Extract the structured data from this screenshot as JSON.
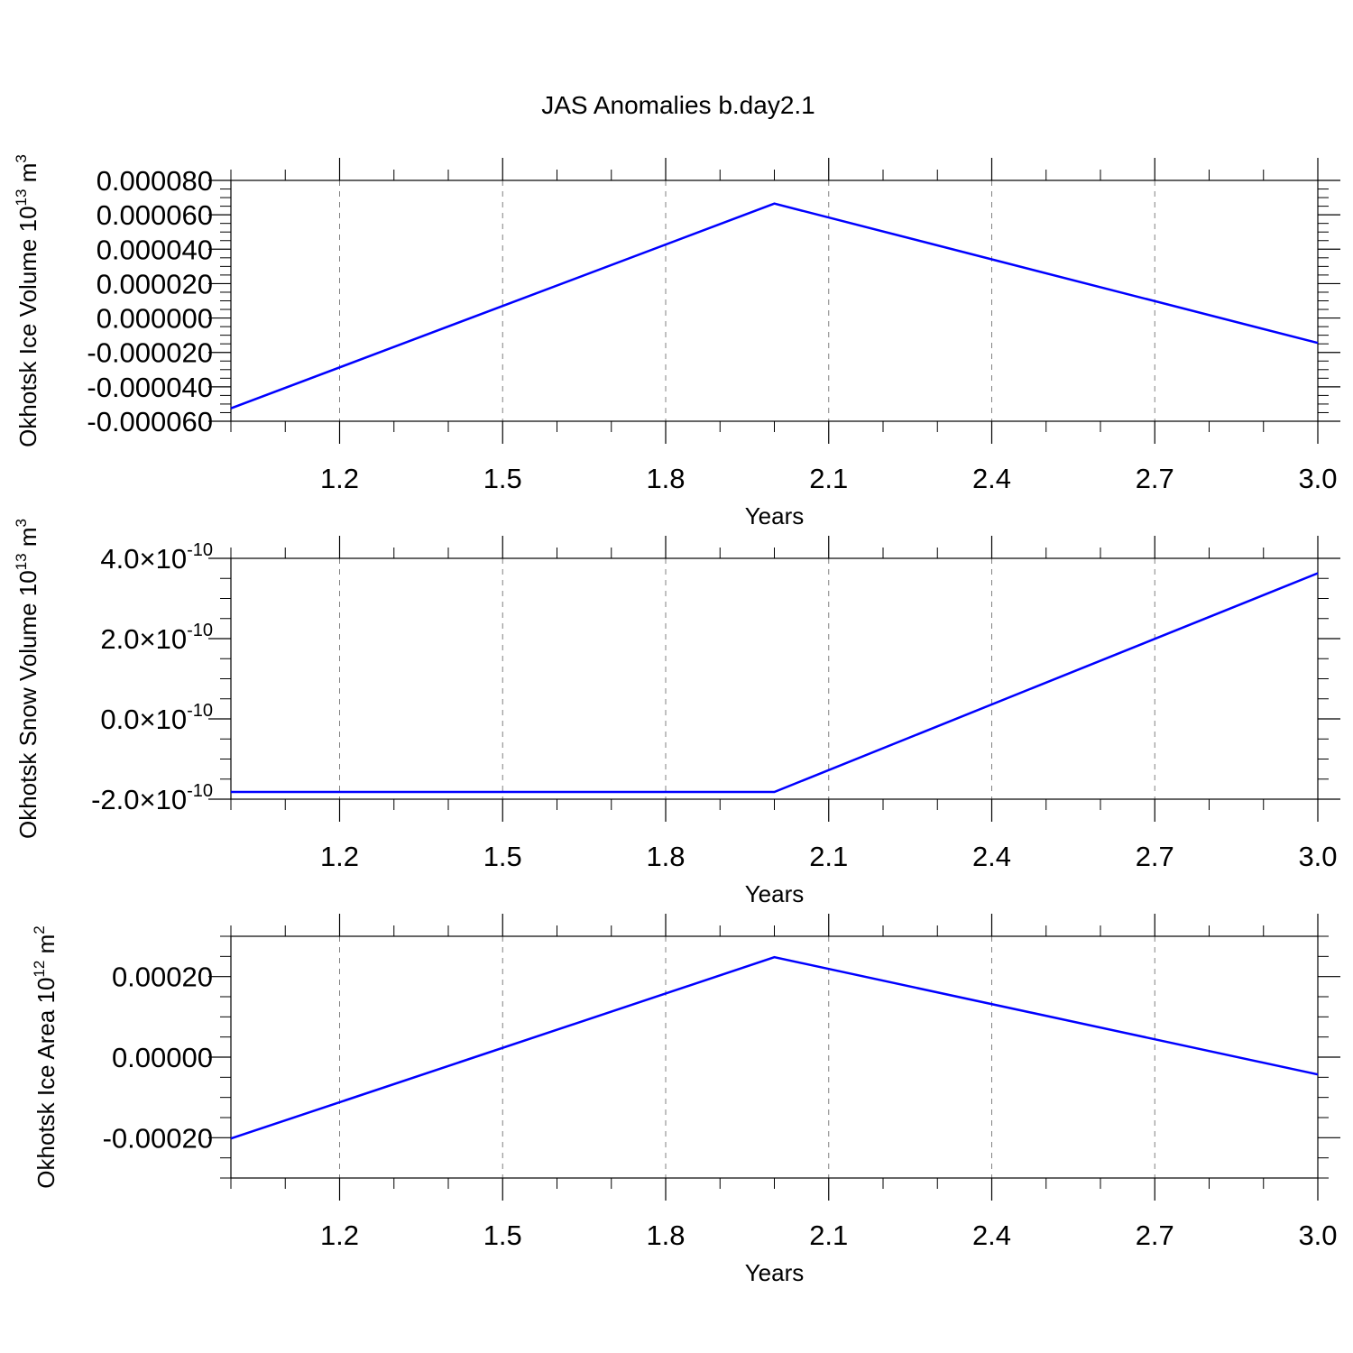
{
  "title": "JAS Anomalies b.day2.1",
  "colors": {
    "line": "#0000ff",
    "axis": "#000000",
    "grid": "#808080"
  },
  "chart_data": [
    {
      "type": "line",
      "xlabel": "Years",
      "ylabel": "Okhotsk Ice Volume 10",
      "ylabel_exp": "13",
      "ylabel_unit": " m",
      "ylabel_unit_exp": "3",
      "xlim": [
        1,
        3
      ],
      "ylim": [
        -6e-05,
        8e-05
      ],
      "xticks": [
        1.2,
        1.5,
        1.8,
        2.1,
        2.4,
        2.7,
        3.0
      ],
      "xtick_labels": [
        "1.2",
        "1.5",
        "1.8",
        "2.1",
        "2.4",
        "2.7",
        "3.0"
      ],
      "yticks": [
        8e-05,
        6e-05,
        4e-05,
        2e-05,
        0.0,
        -2e-05,
        -4e-05,
        -6e-05
      ],
      "ytick_labels": [
        "0.000080",
        "0.000060",
        "0.000040",
        "0.000020",
        "0.000000",
        "-0.000020",
        "-0.000040",
        "-0.000060"
      ],
      "grid": "vertical dashed",
      "series": [
        {
          "x": [
            1,
            2,
            3
          ],
          "values": [
            -5.25e-05,
            6.65e-05,
            -1.45e-05
          ]
        }
      ]
    },
    {
      "type": "line",
      "xlabel": "Years",
      "ylabel": "Okhotsk Snow Volume 10",
      "ylabel_exp": "13",
      "ylabel_unit": " m",
      "ylabel_unit_exp": "3",
      "xlim": [
        1,
        3
      ],
      "ylim": [
        -2e-10,
        4e-10
      ],
      "xticks": [
        1.2,
        1.5,
        1.8,
        2.1,
        2.4,
        2.7,
        3.0
      ],
      "xtick_labels": [
        "1.2",
        "1.5",
        "1.8",
        "2.1",
        "2.4",
        "2.7",
        "3.0"
      ],
      "yticks": [
        4e-10,
        2e-10,
        0,
        -2e-10
      ],
      "ytick_labels": [
        {
          "mantissa": "4.0",
          "times": "×10",
          "exp": "-10"
        },
        {
          "mantissa": "2.0",
          "times": "×10",
          "exp": "-10"
        },
        {
          "mantissa": "0.0",
          "times": "×10",
          "exp": "-10"
        },
        {
          "mantissa": "-2.0",
          "times": "×10",
          "exp": "-10"
        }
      ],
      "grid": "vertical dashed",
      "series": [
        {
          "x": [
            1,
            2,
            3
          ],
          "values": [
            -1.82e-10,
            -1.82e-10,
            3.63e-10
          ]
        }
      ]
    },
    {
      "type": "line",
      "xlabel": "Years",
      "ylabel": "Okhotsk Ice Area 10",
      "ylabel_exp": "12",
      "ylabel_unit": " m",
      "ylabel_unit_exp": "2",
      "xlim": [
        1,
        3
      ],
      "ylim": [
        -0.0003,
        0.0003
      ],
      "xticks": [
        1.2,
        1.5,
        1.8,
        2.1,
        2.4,
        2.7,
        3.0
      ],
      "xtick_labels": [
        "1.2",
        "1.5",
        "1.8",
        "2.1",
        "2.4",
        "2.7",
        "3.0"
      ],
      "yticks": [
        0.0002,
        0.0,
        -0.0002
      ],
      "ytick_labels": [
        "0.00020",
        "0.00000",
        "-0.00020"
      ],
      "grid": "vertical dashed",
      "series": [
        {
          "x": [
            1,
            2,
            3
          ],
          "values": [
            -0.000202,
            0.000248,
            -4.3e-05
          ]
        }
      ]
    }
  ]
}
